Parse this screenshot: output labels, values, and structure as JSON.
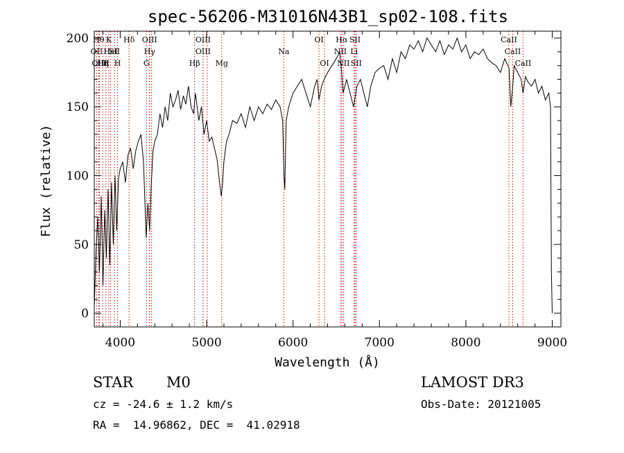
{
  "chart_data": {
    "type": "line",
    "title": "spec-56206-M31016N43B1_sp02-108.fits",
    "xlabel": "Wavelength (Å)",
    "ylabel": "Flux (relative)",
    "xlim": [
      3700,
      9100
    ],
    "ylim": [
      -10,
      205
    ],
    "xticks": [
      4000,
      5000,
      6000,
      7000,
      8000,
      9000
    ],
    "yticks": [
      0,
      50,
      100,
      150,
      200
    ],
    "grid": false,
    "legend": "none",
    "line_color": "#000000",
    "marker_color": "#cc0000",
    "series": [
      {
        "x": [
          3700,
          3720,
          3740,
          3760,
          3780,
          3800,
          3820,
          3840,
          3860,
          3880,
          3900,
          3920,
          3940,
          3960,
          3980,
          4000,
          4030,
          4060,
          4090,
          4120,
          4150,
          4180,
          4210,
          4240,
          4270,
          4300,
          4320,
          4340,
          4360,
          4380,
          4400,
          4430,
          4460,
          4490,
          4520,
          4550,
          4580,
          4610,
          4640,
          4670,
          4700,
          4730,
          4760,
          4790,
          4820,
          4850,
          4870,
          4890,
          4910,
          4940,
          4970,
          5000,
          5030,
          5060,
          5090,
          5120,
          5150,
          5170,
          5185,
          5200,
          5230,
          5260,
          5300,
          5350,
          5400,
          5450,
          5500,
          5550,
          5600,
          5650,
          5700,
          5750,
          5800,
          5850,
          5880,
          5895,
          5905,
          5920,
          5950,
          6000,
          6050,
          6100,
          6150,
          6200,
          6250,
          6280,
          6300,
          6330,
          6360,
          6400,
          6450,
          6500,
          6540,
          6563,
          6580,
          6620,
          6660,
          6700,
          6740,
          6780,
          6820,
          6860,
          6900,
          6950,
          7000,
          7050,
          7100,
          7150,
          7200,
          7250,
          7300,
          7350,
          7400,
          7450,
          7500,
          7550,
          7600,
          7650,
          7700,
          7750,
          7800,
          7850,
          7900,
          7950,
          8000,
          8050,
          8100,
          8150,
          8200,
          8250,
          8300,
          8350,
          8400,
          8450,
          8500,
          8520,
          8542,
          8560,
          8600,
          8640,
          8662,
          8690,
          8720,
          8760,
          8800,
          8840,
          8880,
          8920,
          8960,
          8980,
          8990,
          9000
        ],
        "y": [
          5,
          45,
          70,
          30,
          85,
          20,
          75,
          40,
          90,
          35,
          95,
          50,
          100,
          60,
          98,
          105,
          110,
          95,
          115,
          120,
          105,
          118,
          125,
          130,
          110,
          55,
          80,
          60,
          95,
          118,
          125,
          130,
          145,
          135,
          150,
          140,
          160,
          150,
          155,
          162,
          148,
          158,
          152,
          165,
          150,
          145,
          160,
          150,
          140,
          150,
          130,
          140,
          125,
          128,
          120,
          112,
          95,
          85,
          95,
          110,
          125,
          130,
          140,
          138,
          145,
          135,
          150,
          140,
          150,
          145,
          152,
          148,
          155,
          150,
          140,
          100,
          90,
          140,
          150,
          160,
          165,
          170,
          160,
          150,
          165,
          170,
          155,
          165,
          170,
          175,
          180,
          185,
          190,
          175,
          160,
          170,
          160,
          150,
          165,
          170,
          160,
          150,
          165,
          175,
          178,
          180,
          170,
          185,
          175,
          190,
          185,
          195,
          192,
          198,
          190,
          200,
          195,
          190,
          198,
          188,
          195,
          192,
          200,
          190,
          195,
          185,
          190,
          188,
          192,
          185,
          182,
          180,
          175,
          185,
          178,
          150,
          165,
          180,
          175,
          170,
          160,
          172,
          168,
          165,
          170,
          160,
          165,
          155,
          160,
          150,
          30,
          0
        ]
      }
    ],
    "line_markers": [
      {
        "x": 3750,
        "label": "Hθ",
        "row": 0
      },
      {
        "x": 3727,
        "label": "OII",
        "row": 1
      },
      {
        "x": 3760,
        "label": "OIII",
        "row": 2
      },
      {
        "x": 3798,
        "label": "Hη",
        "row": 2
      },
      {
        "x": 3835,
        "label": "H",
        "row": 2
      },
      {
        "x": 3868,
        "label": "K",
        "row": 0
      },
      {
        "x": 3889,
        "label": "HeI",
        "row": 1
      },
      {
        "x": 3933,
        "label": "SII",
        "row": 1
      },
      {
        "x": 3969,
        "label": "H",
        "row": 2
      },
      {
        "x": 4102,
        "label": "Hδ",
        "row": 0
      },
      {
        "x": 4340,
        "label": "OIII",
        "row": 0
      },
      {
        "x": 4340,
        "label": "Hγ",
        "row": 1
      },
      {
        "x": 4304,
        "label": "G",
        "row": 2
      },
      {
        "x": 4363,
        "label": "",
        "row": 3
      },
      {
        "x": 4861,
        "label": "Hβ",
        "row": 2
      },
      {
        "x": 4959,
        "label": "OIII",
        "row": 0
      },
      {
        "x": 4959,
        "label": "OIII",
        "row": 1
      },
      {
        "x": 5007,
        "label": "",
        "row": 3
      },
      {
        "x": 5175,
        "label": "Mg",
        "row": 2
      },
      {
        "x": 5893,
        "label": "Na",
        "row": 1
      },
      {
        "x": 6300,
        "label": "OI",
        "row": 0
      },
      {
        "x": 6364,
        "label": "OI",
        "row": 2
      },
      {
        "x": 6548,
        "label": "NII",
        "row": 1
      },
      {
        "x": 6563,
        "label": "Hα",
        "row": 0
      },
      {
        "x": 6583,
        "label": "NII",
        "row": 2
      },
      {
        "x": 6707,
        "label": "Li",
        "row": 1
      },
      {
        "x": 6717,
        "label": "SII",
        "row": 0
      },
      {
        "x": 6731,
        "label": "SII",
        "row": 2
      },
      {
        "x": 8498,
        "label": "CaII",
        "row": 0
      },
      {
        "x": 8542,
        "label": "CaII",
        "row": 1
      },
      {
        "x": 8662,
        "label": "CaII",
        "row": 2
      }
    ]
  },
  "info": {
    "class_label": "STAR",
    "subclass": "M0",
    "survey": "LAMOST DR3",
    "cz": "cz = -24.6 ± 1.2 km/s",
    "obs_date": "Obs-Date: 20121005",
    "radec": "RA =  14.96862, DEC =  41.02918"
  }
}
